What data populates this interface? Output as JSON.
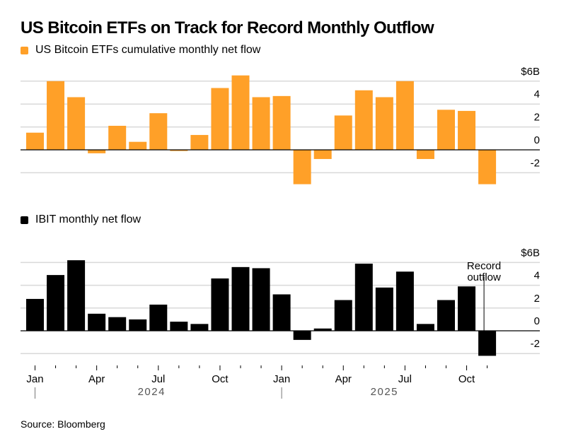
{
  "title": "US Bitcoin ETFs on Track for Record Monthly Outflow",
  "source": "Source: Bloomberg",
  "colors": {
    "etf": "#FFA028",
    "ibit": "#000000",
    "grid": "#D9D9D9",
    "axis": "#000000",
    "year_label": "#555555"
  },
  "chart_data": [
    {
      "type": "bar",
      "title": "US Bitcoin ETFs on Track for Record Monthly Outflow",
      "legend": "US Bitcoin ETFs cumulative monthly net flow",
      "legend_position": "top-left",
      "xlabel": "",
      "ylabel": "",
      "unit": "$B",
      "ylim": [
        -3.3,
        6.8
      ],
      "yticks": [
        6,
        4,
        2,
        0,
        -2
      ],
      "ytick_labels": [
        "$6B",
        "4",
        "2",
        "0",
        "-2"
      ],
      "grid": true,
      "categories": [
        "Jan 2024",
        "Feb 2024",
        "Mar 2024",
        "Apr 2024",
        "May 2024",
        "Jun 2024",
        "Jul 2024",
        "Aug 2024",
        "Sep 2024",
        "Oct 2024",
        "Nov 2024",
        "Dec 2024",
        "Jan 2025",
        "Feb 2025",
        "Mar 2025",
        "Apr 2025",
        "May 2025",
        "Jun 2025",
        "Jul 2025",
        "Aug 2025",
        "Sep 2025",
        "Oct 2025",
        "Nov 2025"
      ],
      "series": [
        {
          "name": "US Bitcoin ETFs cumulative monthly net flow",
          "values": [
            1.5,
            6.0,
            4.6,
            -0.3,
            2.1,
            0.7,
            3.2,
            -0.1,
            1.3,
            5.4,
            6.5,
            4.6,
            4.7,
            -3.0,
            -0.8,
            3.0,
            5.2,
            4.6,
            6.0,
            -0.8,
            3.5,
            3.4,
            -3.0
          ]
        }
      ]
    },
    {
      "type": "bar",
      "legend": "IBIT monthly net flow",
      "legend_position": "top-left",
      "xlabel": "",
      "ylabel": "",
      "unit": "$B",
      "ylim": [
        -2.3,
        6.4
      ],
      "yticks": [
        6,
        4,
        2,
        0,
        -2
      ],
      "ytick_labels": [
        "$6B",
        "4",
        "2",
        "0",
        "-2"
      ],
      "grid": true,
      "categories": [
        "Jan 2024",
        "Feb 2024",
        "Mar 2024",
        "Apr 2024",
        "May 2024",
        "Jun 2024",
        "Jul 2024",
        "Aug 2024",
        "Sep 2024",
        "Oct 2024",
        "Nov 2024",
        "Dec 2024",
        "Jan 2025",
        "Feb 2025",
        "Mar 2025",
        "Apr 2025",
        "May 2025",
        "Jun 2025",
        "Jul 2025",
        "Aug 2025",
        "Sep 2025",
        "Oct 2025",
        "Nov 2025"
      ],
      "series": [
        {
          "name": "IBIT monthly net flow",
          "values": [
            2.8,
            4.9,
            6.2,
            1.5,
            1.2,
            1.0,
            2.3,
            0.8,
            0.6,
            4.6,
            5.6,
            5.5,
            3.2,
            -0.8,
            0.2,
            2.7,
            5.9,
            3.8,
            5.2,
            0.6,
            2.7,
            3.9,
            -2.2
          ]
        }
      ],
      "annotations": [
        {
          "category": "Nov 2025",
          "text_lines": [
            "Record",
            "outflow"
          ]
        }
      ]
    }
  ],
  "x_axis": {
    "month_labels": [
      {
        "index": 0,
        "label": "Jan"
      },
      {
        "index": 3,
        "label": "Apr"
      },
      {
        "index": 6,
        "label": "Jul"
      },
      {
        "index": 9,
        "label": "Oct"
      },
      {
        "index": 12,
        "label": "Jan"
      },
      {
        "index": 15,
        "label": "Apr"
      },
      {
        "index": 18,
        "label": "Jul"
      },
      {
        "index": 21,
        "label": "Oct"
      }
    ],
    "years": [
      {
        "label": "2024",
        "start_index": 0,
        "end_index": 11
      },
      {
        "label": "2025",
        "start_index": 12,
        "end_index": 22
      }
    ]
  }
}
